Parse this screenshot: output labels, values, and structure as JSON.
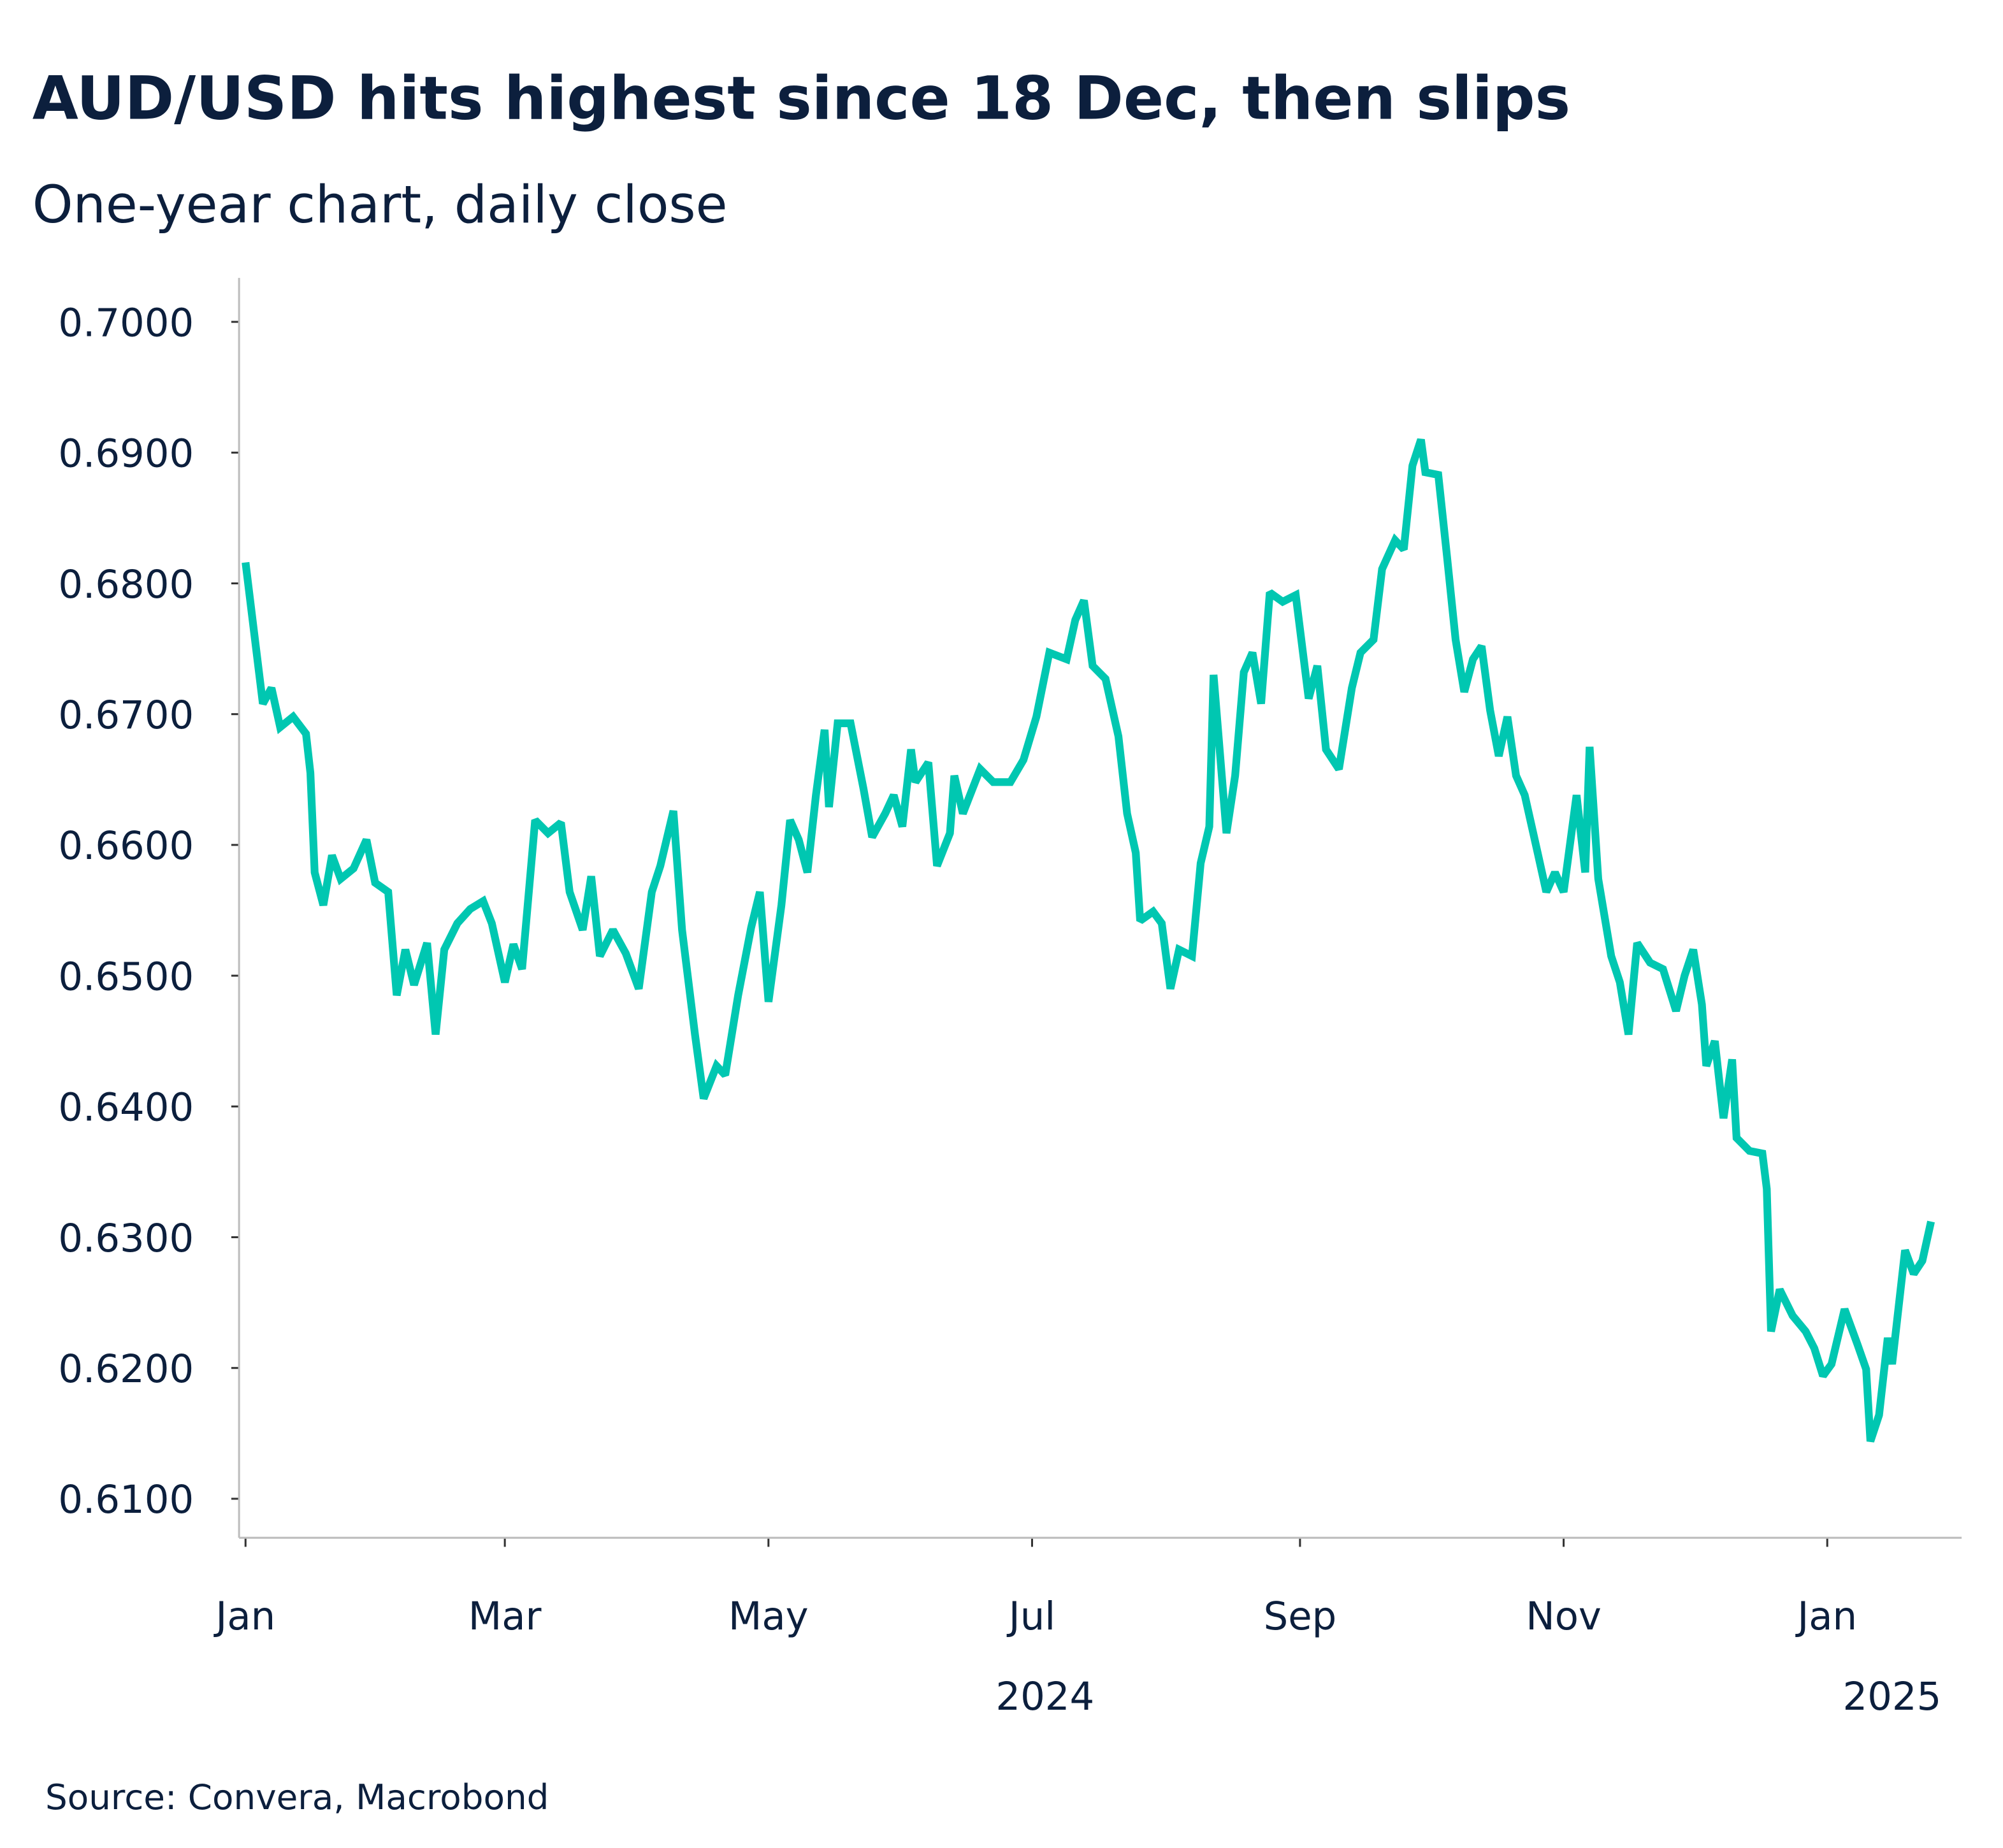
{
  "chart_data": {
    "type": "line",
    "title": "AUD/USD hits highest since 18 Dec, then slips",
    "subtitle": "One-year chart, daily close",
    "source": "Source: Convera, Macrobond",
    "xlabel": "",
    "ylabel": "",
    "ylim": [
      0.607,
      0.703
    ],
    "xlim": [
      "2024-01-01",
      "2025-01-29"
    ],
    "grid": false,
    "legend": "none",
    "line_color": "#00c7b1",
    "text_color": "#0c1f3d",
    "y_ticks": [
      {
        "value": 0.7,
        "label": "0.7000"
      },
      {
        "value": 0.69,
        "label": "0.6900"
      },
      {
        "value": 0.68,
        "label": "0.6800"
      },
      {
        "value": 0.67,
        "label": "0.6700"
      },
      {
        "value": 0.66,
        "label": "0.6600"
      },
      {
        "value": 0.65,
        "label": "0.6500"
      },
      {
        "value": 0.64,
        "label": "0.6400"
      },
      {
        "value": 0.63,
        "label": "0.6300"
      },
      {
        "value": 0.62,
        "label": "0.6200"
      },
      {
        "value": 0.61,
        "label": "0.6100"
      }
    ],
    "x_ticks": [
      {
        "date": "2024-01-01",
        "label": "Jan"
      },
      {
        "date": "2024-03-01",
        "label": "Mar"
      },
      {
        "date": "2024-05-01",
        "label": "May"
      },
      {
        "date": "2024-07-01",
        "label": "Jul"
      },
      {
        "date": "2024-09-01",
        "label": "Sep"
      },
      {
        "date": "2024-11-01",
        "label": "Nov"
      },
      {
        "date": "2025-01-01",
        "label": "Jan"
      }
    ],
    "year_labels": [
      {
        "date": "2024-07-04",
        "label": "2024"
      },
      {
        "date": "2025-01-16",
        "label": "2025"
      }
    ],
    "series": [
      {
        "x": [
          "2024-01-01",
          "2024-01-03",
          "2024-01-05",
          "2024-01-07",
          "2024-01-09",
          "2024-01-12",
          "2024-01-15",
          "2024-01-16",
          "2024-01-17",
          "2024-01-19",
          "2024-01-21",
          "2024-01-23",
          "2024-01-26",
          "2024-01-29",
          "2024-01-31",
          "2024-02-03",
          "2024-02-05",
          "2024-02-07",
          "2024-02-09",
          "2024-02-12",
          "2024-02-14",
          "2024-02-16",
          "2024-02-19",
          "2024-02-22",
          "2024-02-25",
          "2024-02-27",
          "2024-03-01",
          "2024-03-03",
          "2024-03-05",
          "2024-03-08",
          "2024-03-11",
          "2024-03-14",
          "2024-03-16",
          "2024-03-19",
          "2024-03-21",
          "2024-03-23",
          "2024-03-26",
          "2024-03-29",
          "2024-04-01",
          "2024-04-04",
          "2024-04-06",
          "2024-04-09",
          "2024-04-11",
          "2024-04-14",
          "2024-04-16",
          "2024-04-19",
          "2024-04-21",
          "2024-04-24",
          "2024-04-27",
          "2024-04-29",
          "2024-05-01",
          "2024-05-04",
          "2024-05-06",
          "2024-05-08",
          "2024-05-10",
          "2024-05-12",
          "2024-05-14",
          "2024-05-15",
          "2024-05-17",
          "2024-05-20",
          "2024-05-23",
          "2024-05-25",
          "2024-05-28",
          "2024-05-30",
          "2024-06-01",
          "2024-06-03",
          "2024-06-04",
          "2024-06-07",
          "2024-06-09",
          "2024-06-12",
          "2024-06-13",
          "2024-06-15",
          "2024-06-19",
          "2024-06-22",
          "2024-06-26",
          "2024-06-29",
          "2024-07-02",
          "2024-07-05",
          "2024-07-09",
          "2024-07-11",
          "2024-07-13",
          "2024-07-15",
          "2024-07-18",
          "2024-07-21",
          "2024-07-23",
          "2024-07-25",
          "2024-07-26",
          "2024-07-29",
          "2024-07-31",
          "2024-08-02",
          "2024-08-04",
          "2024-08-07",
          "2024-08-09",
          "2024-08-11",
          "2024-08-12",
          "2024-08-15",
          "2024-08-17",
          "2024-08-19",
          "2024-08-21",
          "2024-08-23",
          "2024-08-25",
          "2024-08-28",
          "2024-08-31",
          "2024-09-03",
          "2024-09-05",
          "2024-09-07",
          "2024-09-10",
          "2024-09-13",
          "2024-09-15",
          "2024-09-18",
          "2024-09-20",
          "2024-09-23",
          "2024-09-25",
          "2024-09-27",
          "2024-09-29",
          "2024-09-30",
          "2024-10-03",
          "2024-10-05",
          "2024-10-07",
          "2024-10-09",
          "2024-10-11",
          "2024-10-13",
          "2024-10-15",
          "2024-10-17",
          "2024-10-19",
          "2024-10-21",
          "2024-10-23",
          "2024-10-26",
          "2024-10-28",
          "2024-10-30",
          "2024-11-01",
          "2024-11-04",
          "2024-11-06",
          "2024-11-07",
          "2024-11-09",
          "2024-11-12",
          "2024-11-14",
          "2024-11-16",
          "2024-11-18",
          "2024-11-21",
          "2024-11-24",
          "2024-11-27",
          "2024-11-29",
          "2024-12-01",
          "2024-12-03",
          "2024-12-04",
          "2024-12-06",
          "2024-12-08",
          "2024-12-10",
          "2024-12-11",
          "2024-12-14",
          "2024-12-17",
          "2024-12-18",
          "2024-12-19",
          "2024-12-21",
          "2024-12-24",
          "2024-12-27",
          "2024-12-29",
          "2024-12-31",
          "2025-01-02",
          "2025-01-05",
          "2025-01-08",
          "2025-01-10",
          "2025-01-11",
          "2025-01-13",
          "2025-01-15",
          "2025-01-16",
          "2025-01-19",
          "2025-01-21",
          "2025-01-23",
          "2025-01-25"
        ],
        "y": [
          0.6816,
          0.6762,
          0.6708,
          0.672,
          0.669,
          0.6698,
          0.6685,
          0.6655,
          0.6579,
          0.6554,
          0.6592,
          0.6574,
          0.6582,
          0.6604,
          0.6571,
          0.6564,
          0.6485,
          0.652,
          0.6493,
          0.6525,
          0.6455,
          0.652,
          0.654,
          0.6551,
          0.6557,
          0.654,
          0.6495,
          0.6524,
          0.6505,
          0.6619,
          0.6609,
          0.6617,
          0.6564,
          0.6535,
          0.6576,
          0.6515,
          0.6535,
          0.6517,
          0.649,
          0.6564,
          0.6584,
          0.6626,
          0.6535,
          0.6455,
          0.6406,
          0.6431,
          0.6424,
          0.6485,
          0.6537,
          0.6564,
          0.648,
          0.6554,
          0.6619,
          0.6604,
          0.6579,
          0.6638,
          0.6688,
          0.6629,
          0.6693,
          0.6693,
          0.6643,
          0.6606,
          0.6624,
          0.6638,
          0.6614,
          0.6673,
          0.6648,
          0.6663,
          0.6584,
          0.6609,
          0.6653,
          0.6624,
          0.6658,
          0.6648,
          0.6648,
          0.6665,
          0.6698,
          0.6747,
          0.6742,
          0.6772,
          0.6787,
          0.6737,
          0.6727,
          0.6683,
          0.6624,
          0.6594,
          0.6542,
          0.6549,
          0.654,
          0.649,
          0.652,
          0.6515,
          0.6586,
          0.6614,
          0.673,
          0.6609,
          0.6653,
          0.6732,
          0.6747,
          0.6708,
          0.6793,
          0.6786,
          0.6791,
          0.6712,
          0.6737,
          0.6673,
          0.6658,
          0.672,
          0.6747,
          0.6757,
          0.6811,
          0.6833,
          0.6826,
          0.689,
          0.691,
          0.6885,
          0.6883,
          0.6821,
          0.6757,
          0.6717,
          0.6742,
          0.6752,
          0.6703,
          0.6668,
          0.6698,
          0.6653,
          0.6638,
          0.6594,
          0.6564,
          0.6579,
          0.6564,
          0.6638,
          0.6579,
          0.6675,
          0.6574,
          0.6515,
          0.6495,
          0.6455,
          0.6525,
          0.651,
          0.6505,
          0.6473,
          0.65,
          0.652,
          0.6478,
          0.6431,
          0.645,
          0.6391,
          0.6436,
          0.6376,
          0.6366,
          0.6364,
          0.6337,
          0.6228,
          0.626,
          0.624,
          0.6228,
          0.6215,
          0.6194,
          0.6203,
          0.6245,
          0.6218,
          0.6199,
          0.6144,
          0.6164,
          0.6223,
          0.6203,
          0.629,
          0.6272,
          0.6282,
          0.6312
        ]
      }
    ]
  }
}
